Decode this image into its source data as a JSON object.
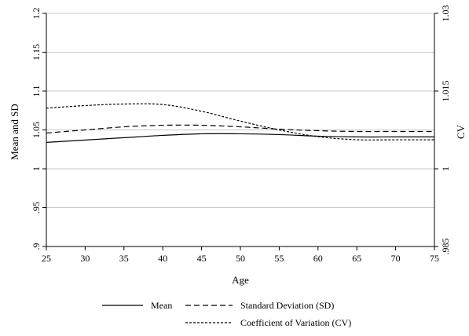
{
  "chart_data": {
    "type": "line",
    "xlabel": "Age",
    "ylabel_left": "Mean and SD",
    "ylabel_right": "CV",
    "xlim": [
      25,
      75
    ],
    "ylim_left": [
      0.9,
      1.2
    ],
    "ylim_right": [
      0.985,
      1.03
    ],
    "xticks": [
      25,
      30,
      35,
      40,
      45,
      50,
      55,
      60,
      65,
      70,
      75
    ],
    "xtick_labels": [
      "25",
      "30",
      "35",
      "40",
      "45",
      "50",
      "55",
      "60",
      "65",
      "70",
      "75"
    ],
    "yticks_left": [
      0.9,
      0.95,
      1.0,
      1.05,
      1.1,
      1.15,
      1.2
    ],
    "ytick_labels_left": [
      ".9",
      ".95",
      "1",
      "1.05",
      "1.1",
      "1.15",
      "1.2"
    ],
    "yticks_right": [
      0.985,
      1.0,
      1.015,
      1.03
    ],
    "ytick_labels_right": [
      ".985",
      "1",
      "1.015",
      "1.03"
    ],
    "grid": "horizontal",
    "legend_position": "bottom",
    "series": [
      {
        "name": "Mean",
        "axis": "left",
        "style": "solid",
        "x": [
          25,
          30,
          35,
          40,
          45,
          50,
          55,
          60,
          65,
          70,
          75
        ],
        "values": [
          1.034,
          1.037,
          1.04,
          1.043,
          1.045,
          1.045,
          1.044,
          1.042,
          1.041,
          1.041,
          1.041
        ]
      },
      {
        "name": "Standard Deviation (SD)",
        "axis": "left",
        "style": "dashed",
        "x": [
          25,
          30,
          35,
          40,
          45,
          50,
          55,
          60,
          65,
          70,
          75
        ],
        "values": [
          1.046,
          1.05,
          1.054,
          1.056,
          1.056,
          1.054,
          1.051,
          1.049,
          1.048,
          1.048,
          1.048
        ]
      },
      {
        "name": "Coefficient of Variation (CV)",
        "axis": "right",
        "style": "dotted",
        "x": [
          25,
          30,
          35,
          40,
          45,
          50,
          55,
          60,
          65,
          70,
          75
        ],
        "values": [
          1.0117,
          1.0122,
          1.0125,
          1.0124,
          1.0111,
          1.0092,
          1.0075,
          1.0062,
          1.0056,
          1.0056,
          1.0056
        ]
      }
    ]
  }
}
